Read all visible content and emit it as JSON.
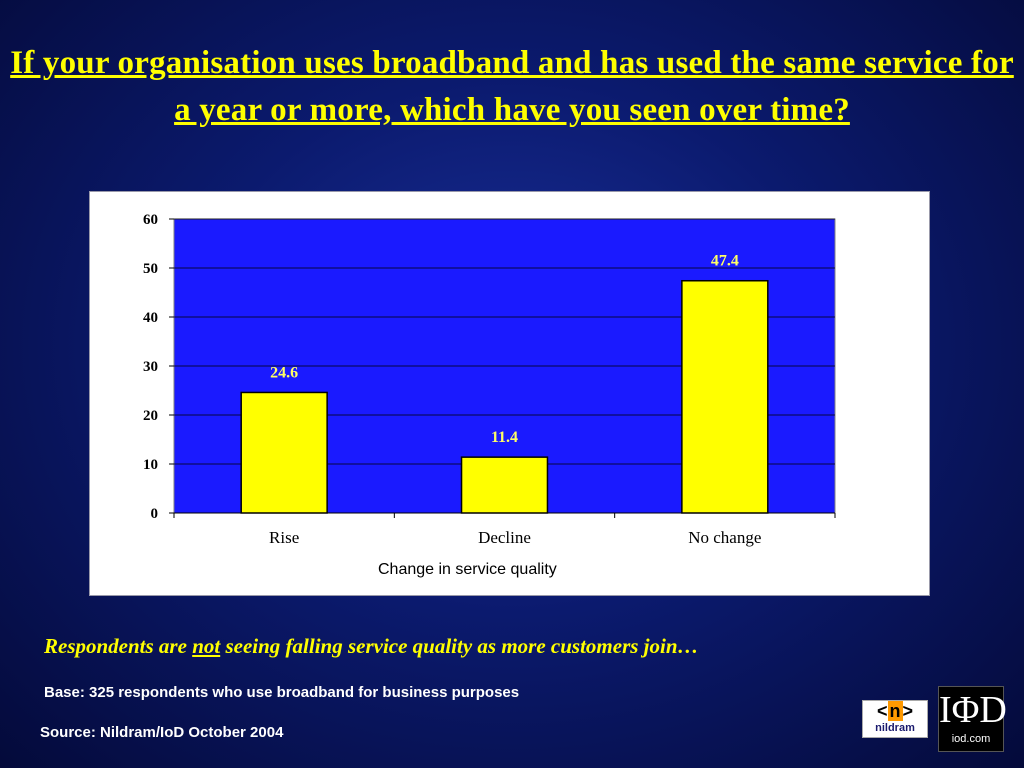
{
  "slide": {
    "title": "If your organisation uses broadband and has used the same service for a year or more, which have you seen over time?",
    "conclusion_prefix": "Respondents are ",
    "conclusion_emphasis": "not",
    "conclusion_suffix": " seeing falling service quality as more customers join…",
    "base_note": "Base: 325 respondents who use broadband for business purposes",
    "source_note": "Source:  Nildram/IoD October 2004"
  },
  "logos": {
    "nildram_mark": "<n>",
    "nildram_word": "nildram",
    "iod_mark": "IoD",
    "iod_word": "iod.com"
  },
  "chart_data": {
    "type": "bar",
    "categories": [
      "Rise",
      "Decline",
      "No change"
    ],
    "values": [
      24.6,
      11.4,
      47.4
    ],
    "data_labels": [
      "24.6",
      "11.4",
      "47.4"
    ],
    "xlabel": "Change in service quality",
    "ylabel": "",
    "ylim": [
      0,
      60
    ],
    "yticks": [
      0,
      10,
      20,
      30,
      40,
      50,
      60
    ],
    "grid": true,
    "legend": "none",
    "colors": {
      "plot_background": "#1a1aff",
      "bar_fill": "#ffff00",
      "bar_outline": "#000000",
      "data_label": "#ffff66",
      "gridline": "#000000"
    }
  }
}
